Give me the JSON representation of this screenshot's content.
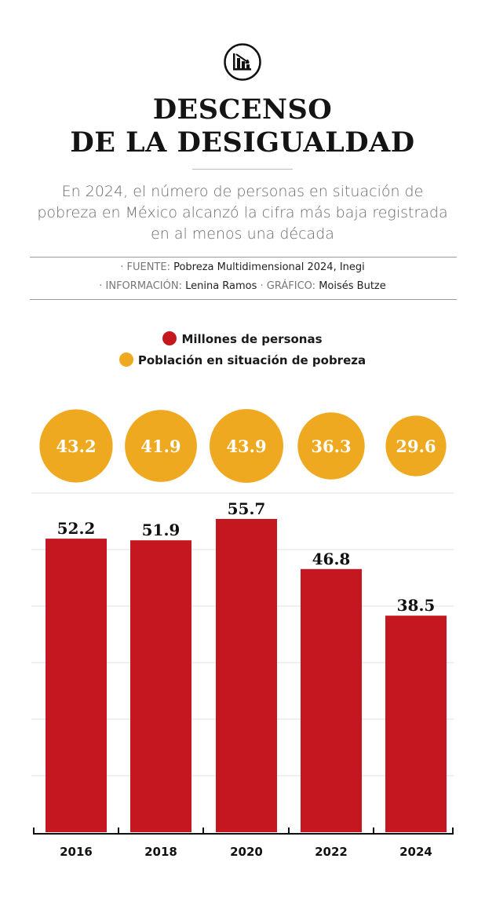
{
  "header": {
    "icon": "declining-bar-chart-icon",
    "title_line1": "DESCENSO",
    "title_line2": "DE LA DESIGUALDAD",
    "intro": "En 2024, el número de personas en situación de pobreza en México alcanzó la cifra más baja registrada en al menos una década"
  },
  "credits": {
    "source_label": "· FUENTE:",
    "source_value": "Pobreza Multidimensional 2024, Inegi",
    "info_label": "· INFORMACIÓN:",
    "info_value": "Lenina Ramos",
    "graphic_label": "· GRÁFICO:",
    "graphic_value": "Moisés Butze"
  },
  "legend": {
    "millones": "Millones de personas",
    "poblacion": "Población en situación de pobreza"
  },
  "colors": {
    "bar": "#c4171f",
    "bubble": "#efa920"
  },
  "chart_data": {
    "type": "bar",
    "categories": [
      "2016",
      "2018",
      "2020",
      "2022",
      "2024"
    ],
    "series": [
      {
        "name": "Millones de personas",
        "values": [
          52.2,
          51.9,
          55.7,
          46.8,
          38.5
        ]
      },
      {
        "name": "Población en situación de pobreza",
        "values": [
          43.2,
          41.9,
          43.9,
          36.3,
          29.6
        ]
      }
    ],
    "value_labels": {
      "bars": [
        "52.2",
        "51.9",
        "55.7",
        "46.8",
        "38.5"
      ],
      "bubbles": [
        "43.2",
        "41.9",
        "43.9",
        "36.3",
        "29.6"
      ]
    },
    "ylim": [
      0,
      55.7
    ],
    "grid": true
  }
}
